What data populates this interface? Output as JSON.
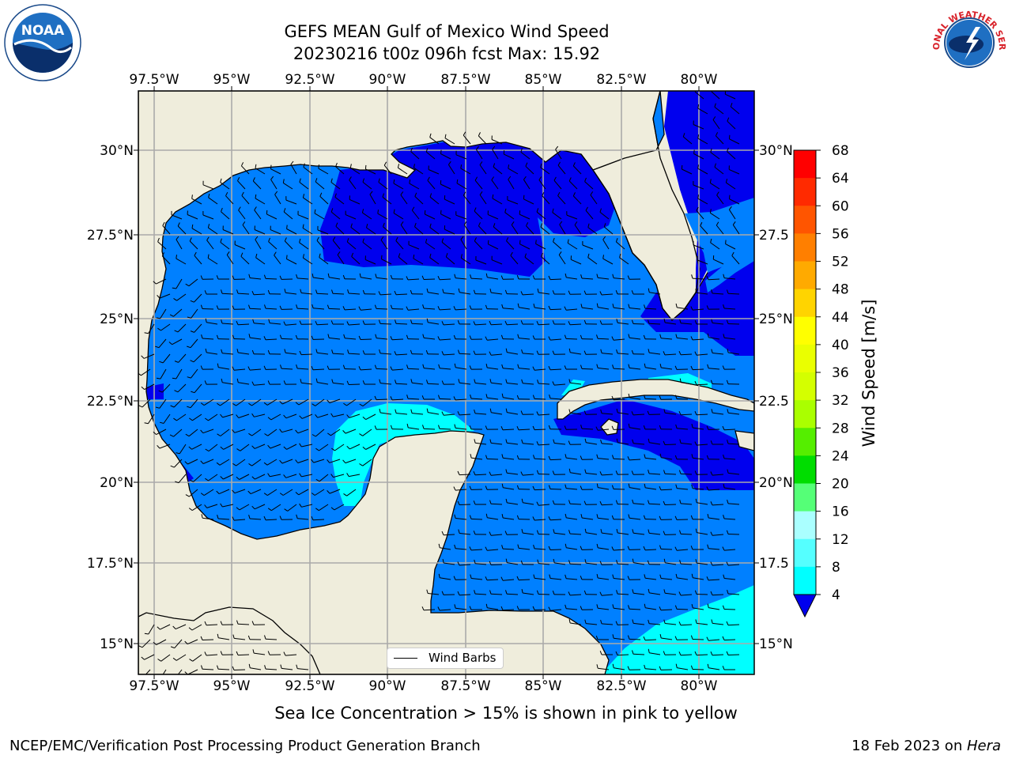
{
  "title_line1": "GEFS MEAN Gulf of Mexico Wind Speed",
  "title_line2": "20230216 t00z 096h fcst   Max: 15.92",
  "subtitle": "Sea Ice Concentration > 15% is shown in pink to yellow",
  "footer_left": "NCEP/EMC/Verification Post Processing Product Generation Branch",
  "footer_date": "18 Feb 2023 on ",
  "footer_host": "Hera",
  "legend_label": "Wind Barbs",
  "lon_labels": [
    "97.5°W",
    "95°W",
    "92.5°W",
    "90°W",
    "87.5°W",
    "85°W",
    "82.5°W",
    "80°W"
  ],
  "lat_labels_left": [
    "30°N",
    "27.5°N",
    "25°N",
    "22.5°N",
    "20°N",
    "17.5°N",
    "15°N"
  ],
  "lat_labels_right": [
    "30°N",
    "27.5",
    "25°N",
    "22.5",
    "20°N",
    "17.5",
    "15°N"
  ],
  "colorbar": {
    "label": "Wind Speed [m/s]",
    "ticks": [
      "68",
      "64",
      "60",
      "56",
      "52",
      "48",
      "44",
      "40",
      "36",
      "32",
      "28",
      "24",
      "20",
      "16",
      "12",
      "8",
      "4"
    ],
    "colors": [
      "#ff0000",
      "#ff2a00",
      "#ff5500",
      "#ff7f00",
      "#ffaa00",
      "#ffd400",
      "#ffff00",
      "#eaff00",
      "#d4ff00",
      "#aaff00",
      "#55ee00",
      "#00dd00",
      "#55ff77",
      "#aaffff",
      "#55ffff",
      "#00ffff",
      "#0077ff"
    ],
    "under_color": "#0000ee"
  },
  "colors": {
    "land": "#efeddc",
    "ocean_base": "#0080ff",
    "ocean_low": "#0000ee",
    "ocean_high": "#00ffff",
    "grid": "#aaaaaa"
  },
  "logos": {
    "left": "NOAA",
    "right": "NATIONAL WEATHER SERVICE"
  }
}
